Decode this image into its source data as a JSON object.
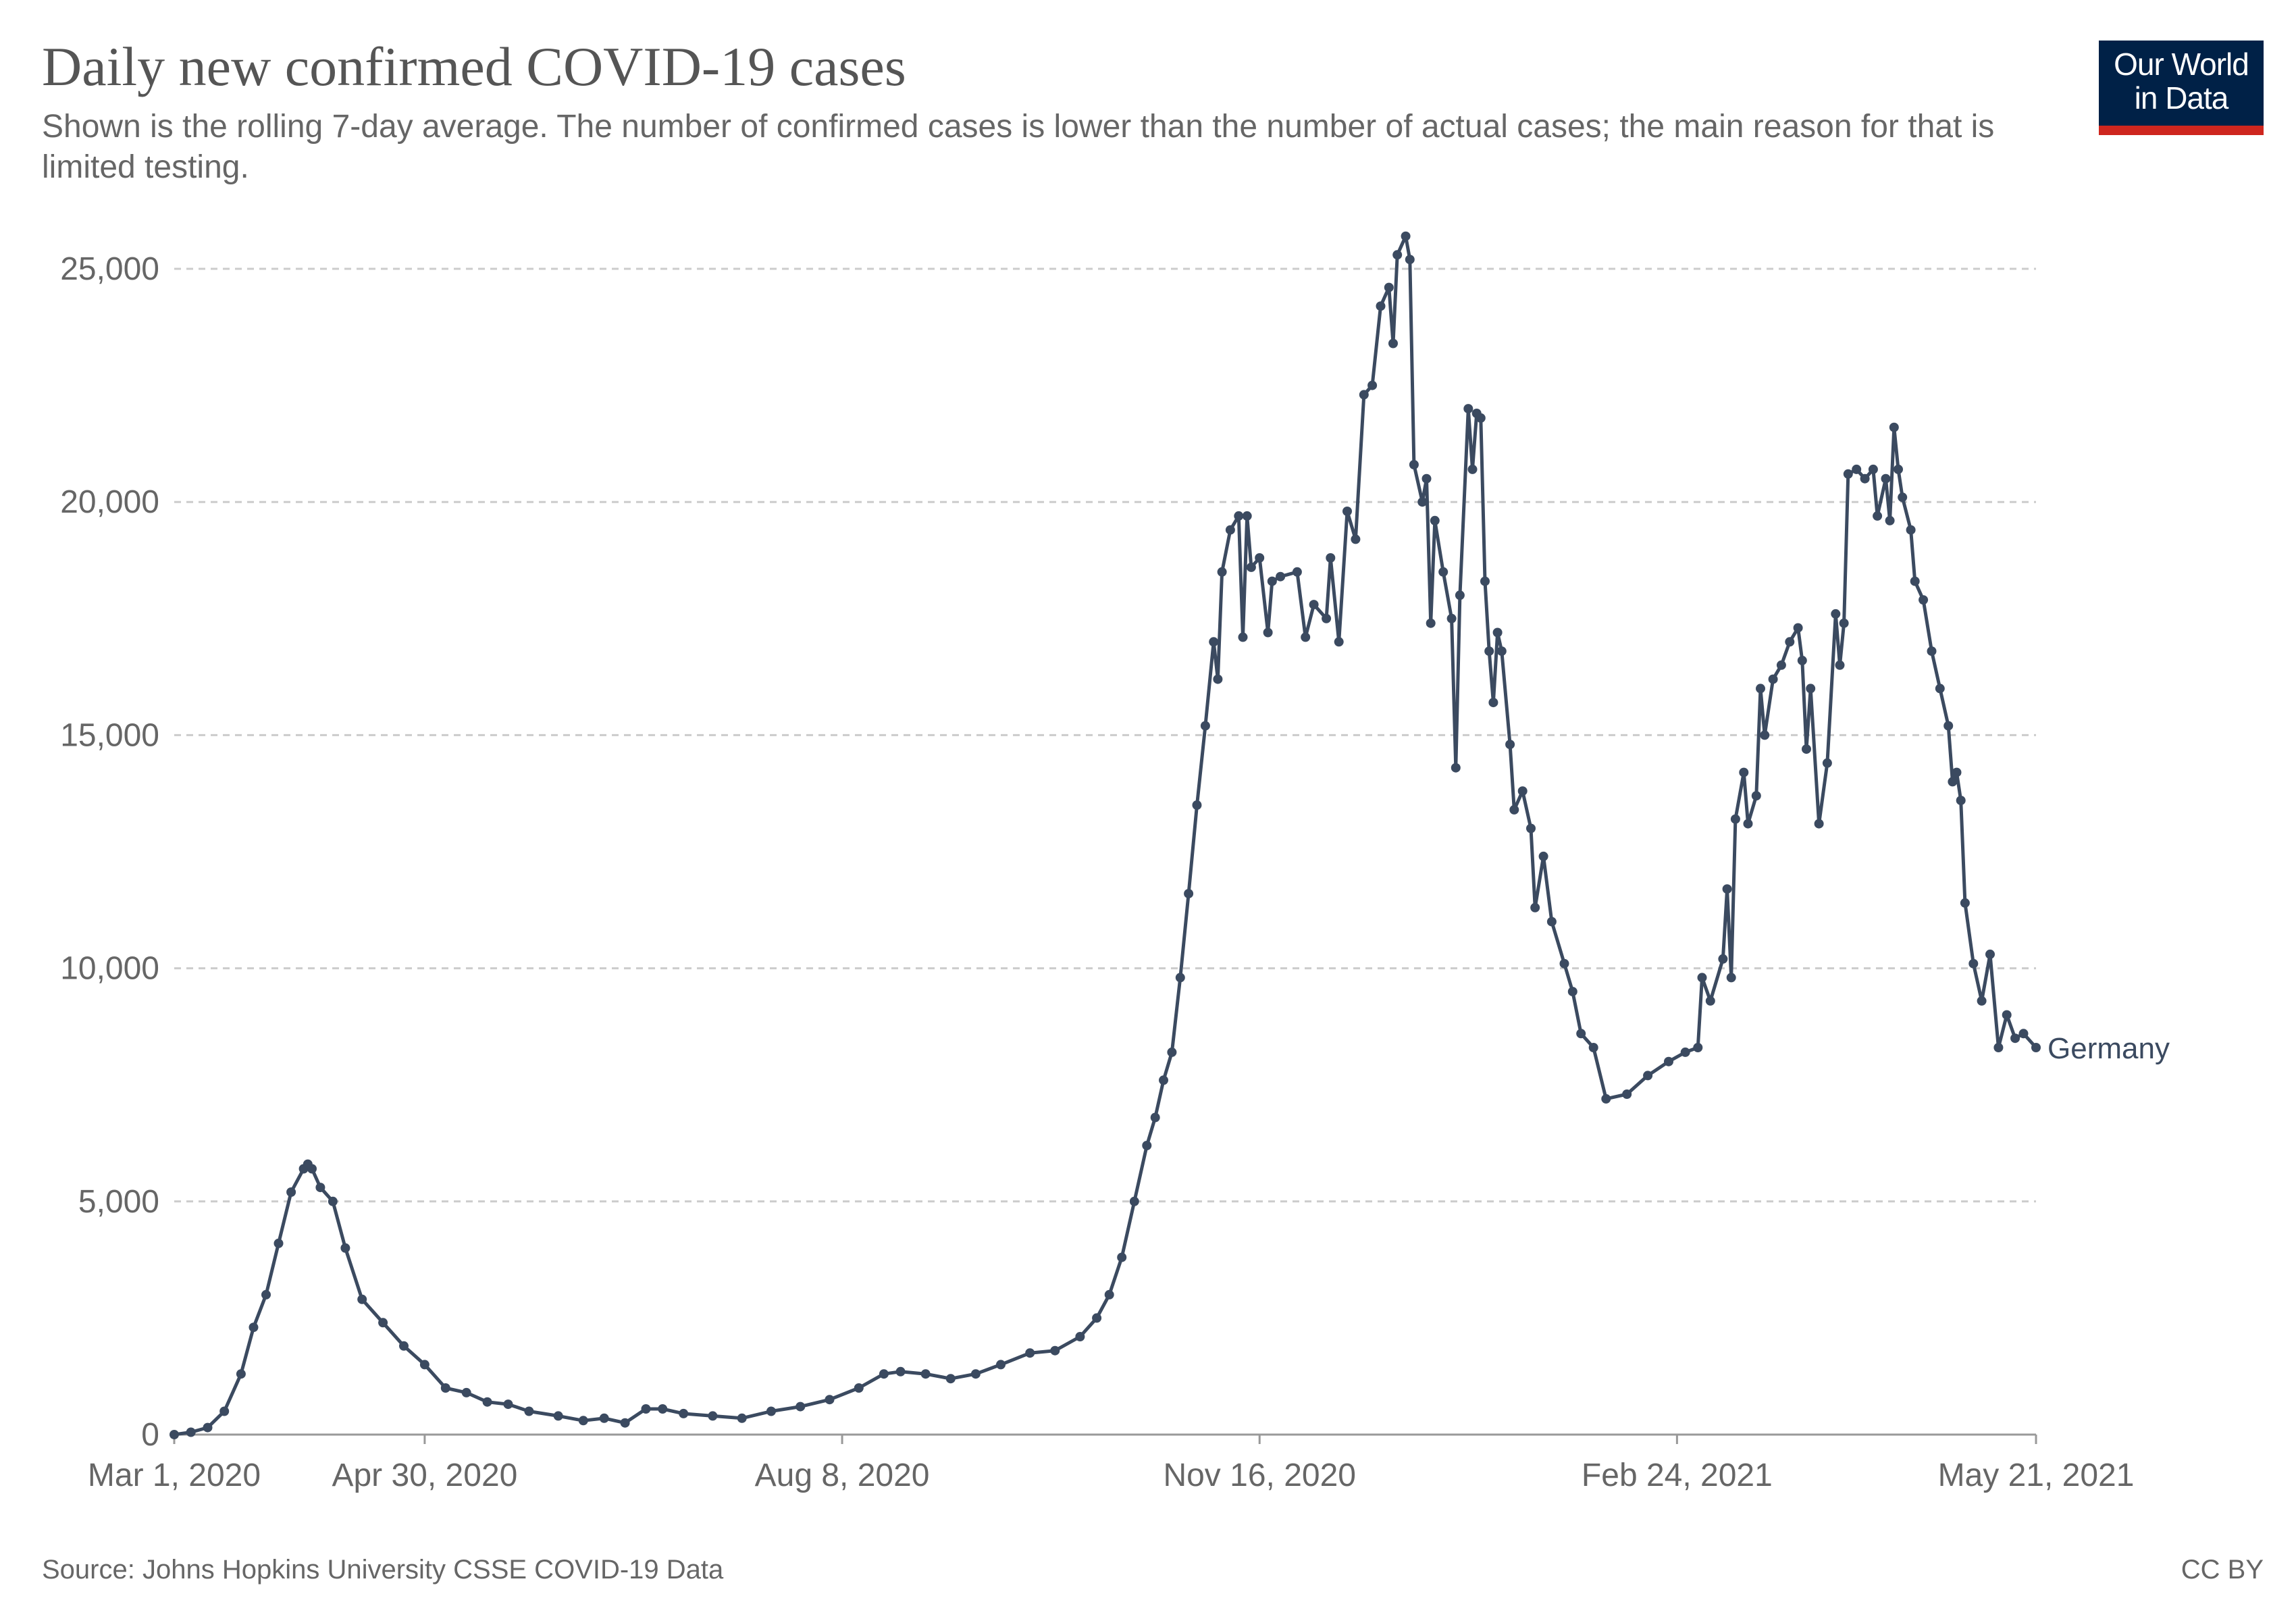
{
  "title": "Daily new confirmed COVID-19 cases",
  "subtitle": "Shown is the rolling 7-day average. The number of confirmed cases is lower than the number of actual cases; the main reason for that is limited testing.",
  "logo": {
    "line1": "Our World",
    "line2": "in Data"
  },
  "source": "Source: Johns Hopkins University CSSE COVID-19 Data",
  "license": "CC BY",
  "colors": {
    "line": "#3b4a60",
    "grid": "#cccccc",
    "axis_text": "#666666",
    "logo_bg": "#002147",
    "logo_bar": "#ce261e"
  },
  "chart_data": {
    "type": "line",
    "title": "Daily new confirmed COVID-19 cases",
    "xlabel": "",
    "ylabel": "",
    "ylim": [
      0,
      25000
    ],
    "y_ticks": [
      0,
      5000,
      10000,
      15000,
      20000,
      25000
    ],
    "y_tick_labels": [
      "0",
      "5,000",
      "10,000",
      "15,000",
      "20,000",
      "25,000"
    ],
    "x_range": [
      "2020-03-01",
      "2021-05-21"
    ],
    "x_ticks": [
      "2020-03-01",
      "2020-04-30",
      "2020-08-08",
      "2020-11-16",
      "2021-02-24",
      "2021-05-21"
    ],
    "x_tick_labels": [
      "Mar 1, 2020",
      "Apr 30, 2020",
      "Aug 8, 2020",
      "Nov 16, 2020",
      "Feb 24, 2021",
      "May 21, 2021"
    ],
    "grid": "horizontal dashed",
    "legend": "line label at end",
    "series": [
      {
        "name": "Germany",
        "points": [
          [
            "2020-03-01",
            0
          ],
          [
            "2020-03-05",
            50
          ],
          [
            "2020-03-09",
            150
          ],
          [
            "2020-03-13",
            500
          ],
          [
            "2020-03-17",
            1300
          ],
          [
            "2020-03-20",
            2300
          ],
          [
            "2020-03-23",
            3000
          ],
          [
            "2020-03-26",
            4100
          ],
          [
            "2020-03-29",
            5200
          ],
          [
            "2020-04-01",
            5700
          ],
          [
            "2020-04-02",
            5800
          ],
          [
            "2020-04-03",
            5700
          ],
          [
            "2020-04-05",
            5300
          ],
          [
            "2020-04-08",
            5000
          ],
          [
            "2020-04-11",
            4000
          ],
          [
            "2020-04-15",
            2900
          ],
          [
            "2020-04-20",
            2400
          ],
          [
            "2020-04-25",
            1900
          ],
          [
            "2020-04-30",
            1500
          ],
          [
            "2020-05-05",
            1000
          ],
          [
            "2020-05-10",
            900
          ],
          [
            "2020-05-15",
            700
          ],
          [
            "2020-05-20",
            650
          ],
          [
            "2020-05-25",
            500
          ],
          [
            "2020-06-01",
            400
          ],
          [
            "2020-06-07",
            300
          ],
          [
            "2020-06-12",
            350
          ],
          [
            "2020-06-17",
            250
          ],
          [
            "2020-06-22",
            550
          ],
          [
            "2020-06-26",
            550
          ],
          [
            "2020-07-01",
            450
          ],
          [
            "2020-07-08",
            400
          ],
          [
            "2020-07-15",
            350
          ],
          [
            "2020-07-22",
            500
          ],
          [
            "2020-07-29",
            600
          ],
          [
            "2020-08-05",
            750
          ],
          [
            "2020-08-12",
            1000
          ],
          [
            "2020-08-18",
            1300
          ],
          [
            "2020-08-22",
            1350
          ],
          [
            "2020-08-28",
            1300
          ],
          [
            "2020-09-03",
            1200
          ],
          [
            "2020-09-09",
            1300
          ],
          [
            "2020-09-15",
            1500
          ],
          [
            "2020-09-22",
            1750
          ],
          [
            "2020-09-28",
            1800
          ],
          [
            "2020-10-04",
            2100
          ],
          [
            "2020-10-08",
            2500
          ],
          [
            "2020-10-11",
            3000
          ],
          [
            "2020-10-14",
            3800
          ],
          [
            "2020-10-17",
            5000
          ],
          [
            "2020-10-20",
            6200
          ],
          [
            "2020-10-22",
            6800
          ],
          [
            "2020-10-24",
            7600
          ],
          [
            "2020-10-26",
            8200
          ],
          [
            "2020-10-28",
            9800
          ],
          [
            "2020-10-30",
            11600
          ],
          [
            "2020-11-01",
            13500
          ],
          [
            "2020-11-03",
            15200
          ],
          [
            "2020-11-05",
            17000
          ],
          [
            "2020-11-06",
            16200
          ],
          [
            "2020-11-07",
            18500
          ],
          [
            "2020-11-09",
            19400
          ],
          [
            "2020-11-11",
            19700
          ],
          [
            "2020-11-12",
            17100
          ],
          [
            "2020-11-13",
            19700
          ],
          [
            "2020-11-14",
            18600
          ],
          [
            "2020-11-16",
            18800
          ],
          [
            "2020-11-18",
            17200
          ],
          [
            "2020-11-19",
            18300
          ],
          [
            "2020-11-21",
            18400
          ],
          [
            "2020-11-25",
            18500
          ],
          [
            "2020-11-27",
            17100
          ],
          [
            "2020-11-29",
            17800
          ],
          [
            "2020-12-02",
            17500
          ],
          [
            "2020-12-03",
            18800
          ],
          [
            "2020-12-05",
            17000
          ],
          [
            "2020-12-07",
            19800
          ],
          [
            "2020-12-09",
            19200
          ],
          [
            "2020-12-11",
            22300
          ],
          [
            "2020-12-13",
            22500
          ],
          [
            "2020-12-15",
            24200
          ],
          [
            "2020-12-17",
            24600
          ],
          [
            "2020-12-18",
            23400
          ],
          [
            "2020-12-19",
            25300
          ],
          [
            "2020-12-21",
            25700
          ],
          [
            "2020-12-22",
            25200
          ],
          [
            "2020-12-23",
            20800
          ],
          [
            "2020-12-25",
            20000
          ],
          [
            "2020-12-26",
            20500
          ],
          [
            "2020-12-27",
            17400
          ],
          [
            "2020-12-28",
            19600
          ],
          [
            "2020-12-30",
            18500
          ],
          [
            "2021-01-01",
            17500
          ],
          [
            "2021-01-02",
            14300
          ],
          [
            "2021-01-03",
            18000
          ],
          [
            "2021-01-05",
            22000
          ],
          [
            "2021-01-06",
            20700
          ],
          [
            "2021-01-07",
            21900
          ],
          [
            "2021-01-08",
            21800
          ],
          [
            "2021-01-09",
            18300
          ],
          [
            "2021-01-10",
            16800
          ],
          [
            "2021-01-11",
            15700
          ],
          [
            "2021-01-12",
            17200
          ],
          [
            "2021-01-13",
            16800
          ],
          [
            "2021-01-15",
            14800
          ],
          [
            "2021-01-16",
            13400
          ],
          [
            "2021-01-18",
            13800
          ],
          [
            "2021-01-20",
            13000
          ],
          [
            "2021-01-21",
            11300
          ],
          [
            "2021-01-23",
            12400
          ],
          [
            "2021-01-25",
            11000
          ],
          [
            "2021-01-28",
            10100
          ],
          [
            "2021-01-30",
            9500
          ],
          [
            "2021-02-01",
            8600
          ],
          [
            "2021-02-04",
            8300
          ],
          [
            "2021-02-07",
            7200
          ],
          [
            "2021-02-12",
            7300
          ],
          [
            "2021-02-17",
            7700
          ],
          [
            "2021-02-22",
            8000
          ],
          [
            "2021-02-26",
            8200
          ],
          [
            "2021-03-01",
            8300
          ],
          [
            "2021-03-02",
            9800
          ],
          [
            "2021-03-04",
            9300
          ],
          [
            "2021-03-07",
            10200
          ],
          [
            "2021-03-08",
            11700
          ],
          [
            "2021-03-09",
            9800
          ],
          [
            "2021-03-10",
            13200
          ],
          [
            "2021-03-12",
            14200
          ],
          [
            "2021-03-13",
            13100
          ],
          [
            "2021-03-15",
            13700
          ],
          [
            "2021-03-16",
            16000
          ],
          [
            "2021-03-17",
            15000
          ],
          [
            "2021-03-19",
            16200
          ],
          [
            "2021-03-21",
            16500
          ],
          [
            "2021-03-23",
            17000
          ],
          [
            "2021-03-25",
            17300
          ],
          [
            "2021-03-26",
            16600
          ],
          [
            "2021-03-27",
            14700
          ],
          [
            "2021-03-28",
            16000
          ],
          [
            "2021-03-30",
            13100
          ],
          [
            "2021-04-01",
            14400
          ],
          [
            "2021-04-03",
            17600
          ],
          [
            "2021-04-04",
            16500
          ],
          [
            "2021-04-05",
            17400
          ],
          [
            "2021-04-06",
            20600
          ],
          [
            "2021-04-08",
            20700
          ],
          [
            "2021-04-10",
            20500
          ],
          [
            "2021-04-12",
            20700
          ],
          [
            "2021-04-13",
            19700
          ],
          [
            "2021-04-15",
            20500
          ],
          [
            "2021-04-16",
            19600
          ],
          [
            "2021-04-17",
            21600
          ],
          [
            "2021-04-18",
            20700
          ],
          [
            "2021-04-19",
            20100
          ],
          [
            "2021-04-21",
            19400
          ],
          [
            "2021-04-22",
            18300
          ],
          [
            "2021-04-24",
            17900
          ],
          [
            "2021-04-26",
            16800
          ],
          [
            "2021-04-28",
            16000
          ],
          [
            "2021-04-30",
            15200
          ],
          [
            "2021-05-01",
            14000
          ],
          [
            "2021-05-02",
            14200
          ],
          [
            "2021-05-03",
            13600
          ],
          [
            "2021-05-04",
            11400
          ],
          [
            "2021-05-06",
            10100
          ],
          [
            "2021-05-08",
            9300
          ],
          [
            "2021-05-10",
            10300
          ],
          [
            "2021-05-12",
            8300
          ],
          [
            "2021-05-14",
            9000
          ],
          [
            "2021-05-16",
            8500
          ],
          [
            "2021-05-18",
            8600
          ],
          [
            "2021-05-21",
            8300
          ]
        ]
      }
    ]
  }
}
